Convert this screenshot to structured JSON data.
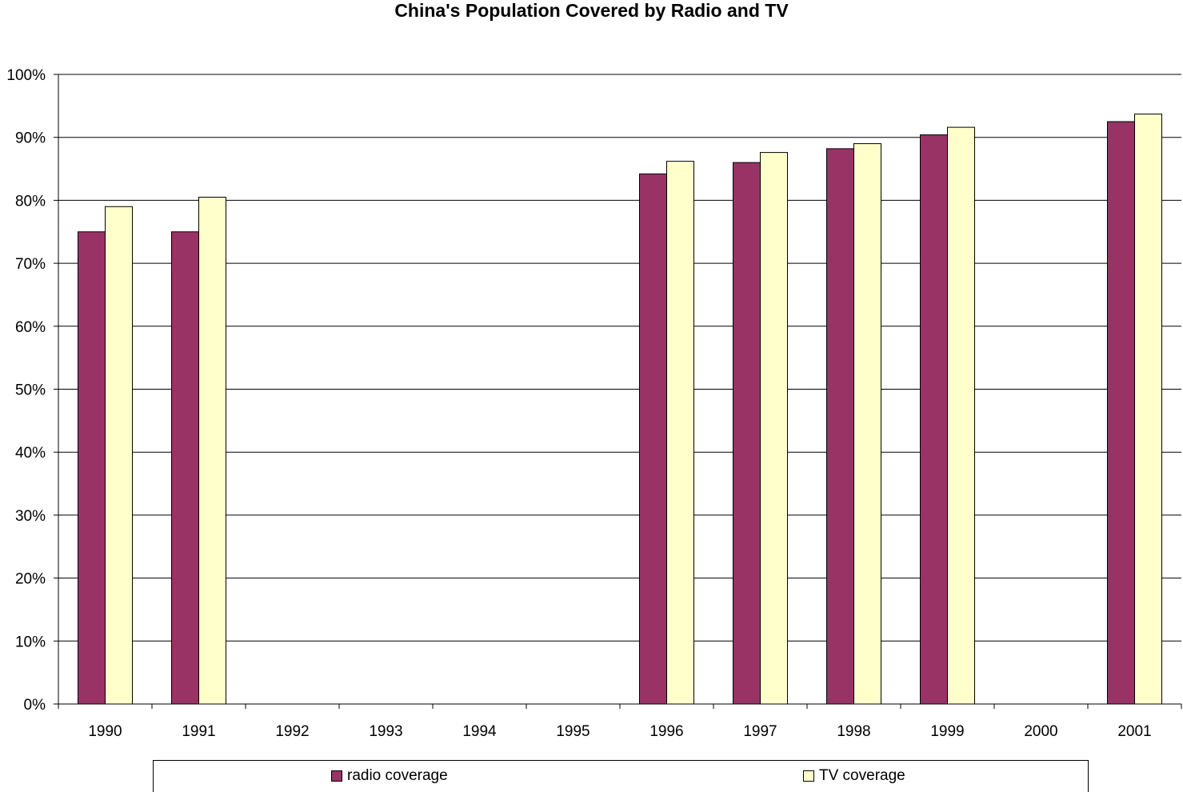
{
  "chart_data": {
    "type": "bar",
    "title": "China's Population Covered by Radio and TV",
    "xlabel": "",
    "ylabel": "",
    "ylim": [
      0,
      100
    ],
    "y_ticks": [
      "0%",
      "10%",
      "20%",
      "30%",
      "40%",
      "50%",
      "60%",
      "70%",
      "80%",
      "90%",
      "100%"
    ],
    "categories": [
      "1990",
      "1991",
      "1992",
      "1993",
      "1994",
      "1995",
      "1996",
      "1997",
      "1998",
      "1999",
      "2000",
      "2001"
    ],
    "series": [
      {
        "name": "radio coverage",
        "color": "#993366",
        "values": [
          75.0,
          75.0,
          null,
          null,
          null,
          null,
          84.2,
          86.0,
          88.2,
          90.4,
          null,
          92.5
        ]
      },
      {
        "name": "TV coverage",
        "color": "#ffffcc",
        "values": [
          79.0,
          80.5,
          null,
          null,
          null,
          null,
          86.2,
          87.6,
          89.0,
          91.6,
          null,
          93.7
        ]
      }
    ],
    "grid": true,
    "legend_position": "bottom"
  }
}
